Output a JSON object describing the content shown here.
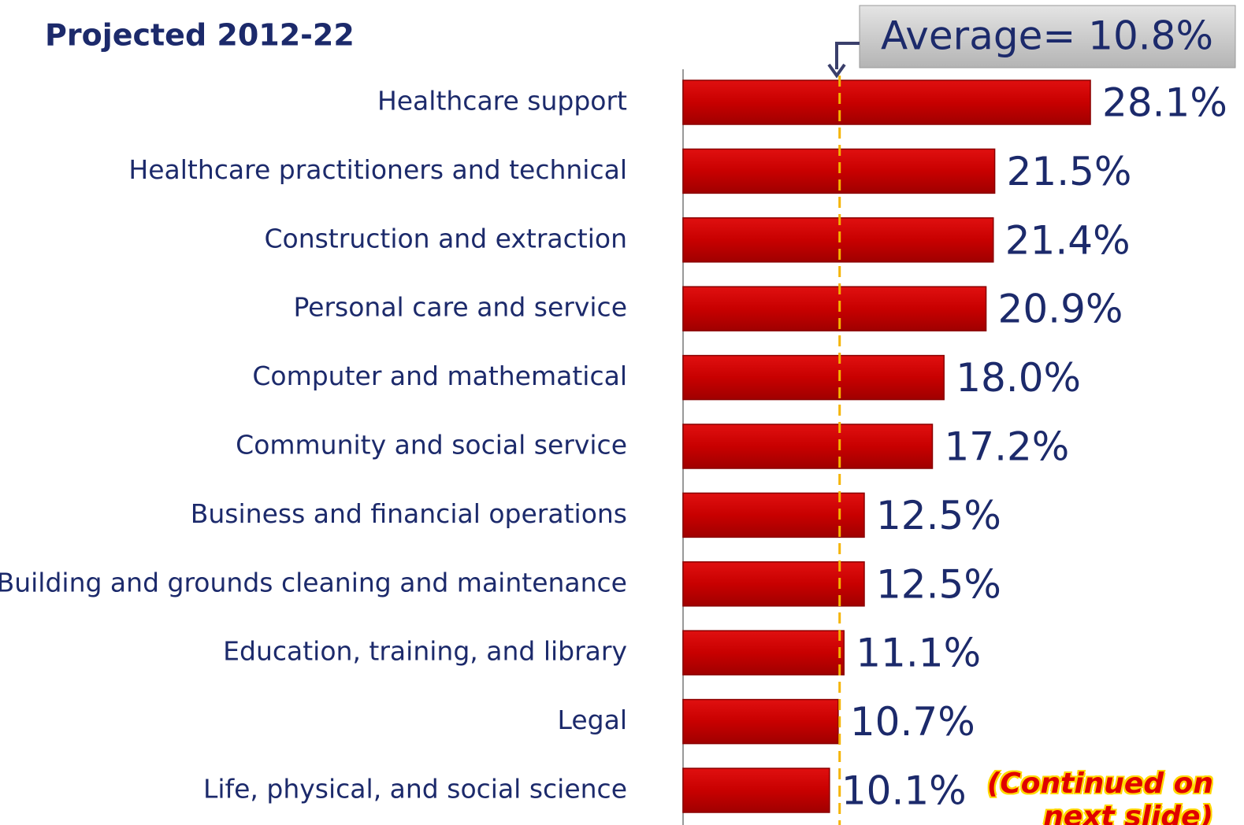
{
  "chart_data": {
    "type": "barh",
    "title": "Projected 2012-22",
    "categories": [
      "Healthcare support",
      "Healthcare practitioners and technical",
      "Construction and extraction",
      "Personal care and service",
      "Computer and mathematical",
      "Community and social service",
      "Business and financial operations",
      "Building and grounds cleaning and maintenance",
      "Education, training, and library",
      "Legal",
      "Life, physical, and social science"
    ],
    "values": [
      28.1,
      21.5,
      21.4,
      20.9,
      18.0,
      17.2,
      12.5,
      12.5,
      11.1,
      10.7,
      10.1
    ],
    "value_labels": [
      "28.1%",
      "21.5%",
      "21.4%",
      "20.9%",
      "18.0%",
      "17.2%",
      "12.5%",
      "12.5%",
      "11.1%",
      "10.7%",
      "10.1%"
    ],
    "color": "#cc0000",
    "xlim": [
      0,
      30
    ],
    "average": 10.8,
    "average_label": "Average= 10.8%",
    "average_color": "#f5b400",
    "annotation": "(Continued on next slide)"
  }
}
